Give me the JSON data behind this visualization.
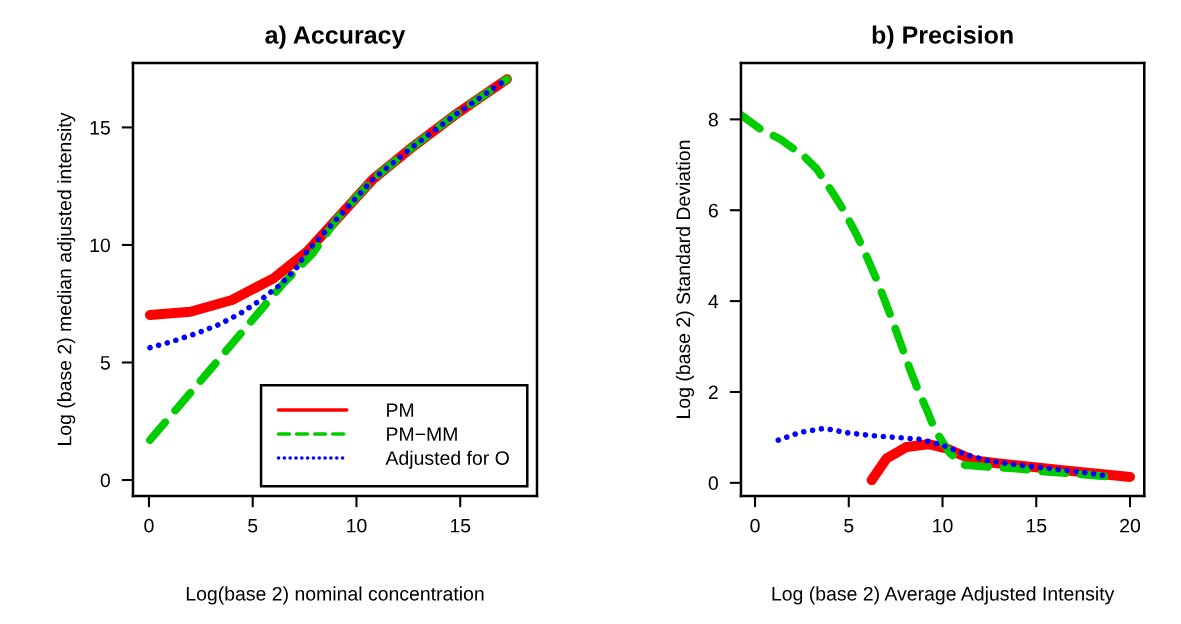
{
  "chart_data": [
    {
      "type": "line",
      "title": "a) Accuracy",
      "xlabel": "Log(base 2) nominal concentration",
      "ylabel": "Log (base 2) median adjusted intensity",
      "xlim": [
        -0.77,
        18.7
      ],
      "ylim": [
        -0.68,
        17.74
      ],
      "xticks": [
        0,
        5,
        10,
        15
      ],
      "yticks": [
        0,
        5,
        10,
        15
      ],
      "grid": false,
      "legend": "bottom right",
      "series": [
        {
          "name": "PM",
          "color": "#ff0000",
          "line_style": "solid",
          "x": [
            0.05,
            2,
            4,
            6,
            7.6,
            9.05,
            10.8,
            12.75,
            14.7,
            17.25
          ],
          "values": [
            7.02,
            7.16,
            7.66,
            8.58,
            9.7,
            11.1,
            12.8,
            14.2,
            15.5,
            17.05
          ]
        },
        {
          "name": "PM−MM",
          "color": "#00cd00",
          "line_style": "dashed",
          "x": [
            0.05,
            3,
            6.48,
            7.9,
            9.05,
            10.8,
            12.75,
            14.7,
            17.25
          ],
          "values": [
            1.7,
            4.75,
            8.37,
            9.65,
            11.1,
            12.8,
            14.2,
            15.5,
            17.05
          ]
        },
        {
          "name": "Adjusted for O",
          "color": "#0000ff",
          "line_style": "dotted",
          "x": [
            0.05,
            1.17,
            2.27,
            3.36,
            4.39,
            5.37,
            6.29,
            7.09,
            7.6,
            9.05,
            10.8,
            12.75,
            14.7,
            17.25
          ],
          "values": [
            5.63,
            5.91,
            6.23,
            6.61,
            7.08,
            7.65,
            8.28,
            8.99,
            9.7,
            11.1,
            12.8,
            14.2,
            15.5,
            17.05
          ]
        }
      ]
    },
    {
      "type": "line",
      "title": "b) Precision",
      "xlabel": "Log (base 2) Average Adjusted Intensity",
      "ylabel": "Log (base 2) Standard Deviation",
      "xlim": [
        -0.75,
        20.76
      ],
      "ylim": [
        -0.29,
        9.24
      ],
      "xticks": [
        0,
        5,
        10,
        15,
        20
      ],
      "yticks": [
        0,
        2,
        4,
        6,
        8
      ],
      "grid": false,
      "legend": false,
      "series": [
        {
          "color": "#ff0000",
          "line_style": "solid",
          "x": [
            6.22,
            7.02,
            8.09,
            9.24,
            10.2,
            11.7,
            12.9,
            16.4,
            20.0
          ],
          "values": [
            0.06,
            0.54,
            0.79,
            0.85,
            0.76,
            0.49,
            0.43,
            0.28,
            0.13
          ]
        },
        {
          "color": "#00cd00",
          "line_style": "dashed",
          "x": [
            -0.75,
            0.36,
            1.33,
            2.58,
            3.29,
            4.18,
            4.71,
            5.42,
            5.87,
            6.49,
            6.84,
            7.38,
            7.73,
            8.27,
            8.62,
            9.24,
            9.6,
            10.4,
            11.2,
            12.9,
            13.8,
            15.6,
            16.4,
            18.9
          ],
          "values": [
            8.1,
            7.76,
            7.57,
            7.2,
            6.91,
            6.36,
            6.01,
            5.46,
            5.06,
            4.47,
            4.1,
            3.51,
            3.11,
            2.49,
            2.12,
            1.53,
            1.16,
            0.65,
            0.39,
            0.34,
            0.32,
            0.24,
            0.22,
            0.13
          ]
        },
        {
          "color": "#0000ff",
          "line_style": "dotted",
          "x": [
            1.24,
            2.4,
            3.7,
            4.94,
            6.22,
            7.5,
            8.8,
            9.99,
            11.2,
            12.4,
            13.65,
            14.9,
            16.2,
            17.5,
            18.76
          ],
          "values": [
            0.94,
            1.11,
            1.2,
            1.1,
            1.04,
            1.0,
            0.96,
            0.83,
            0.63,
            0.49,
            0.41,
            0.35,
            0.29,
            0.23,
            0.15
          ]
        }
      ]
    }
  ]
}
